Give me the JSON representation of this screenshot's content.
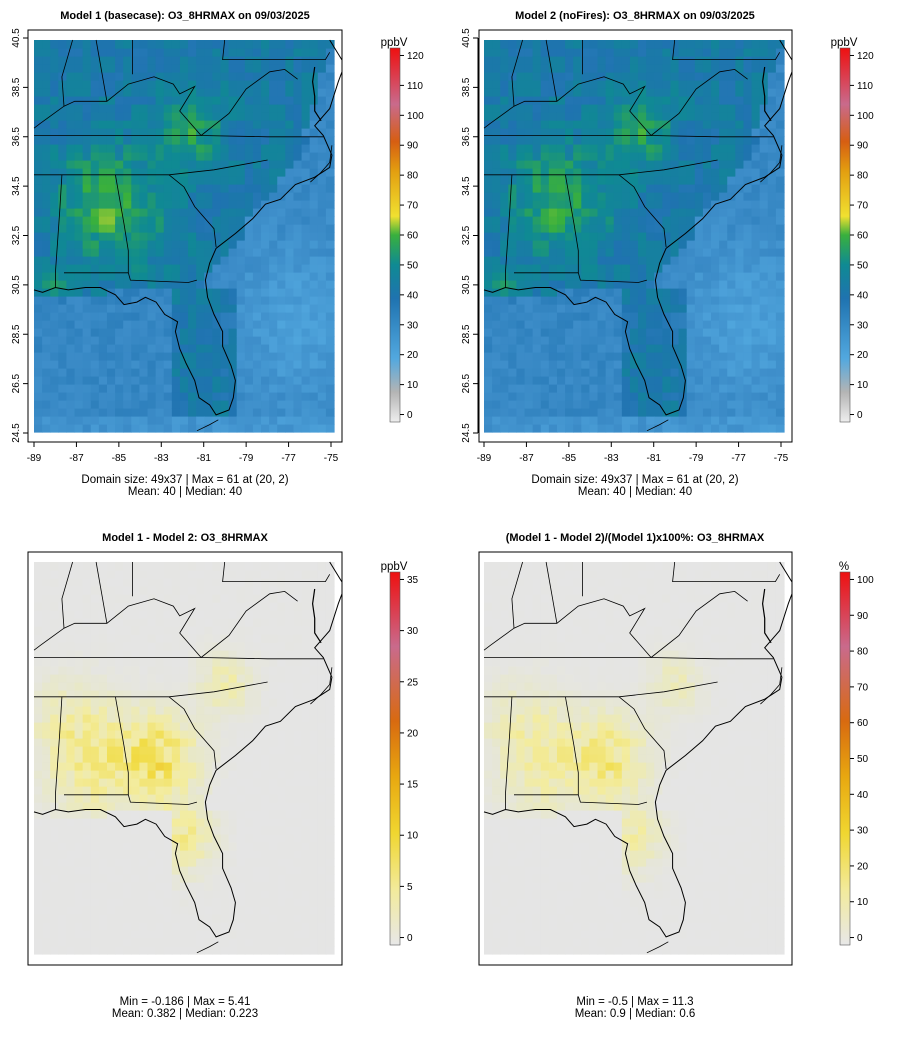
{
  "panels": [
    {
      "id": "m1",
      "type": "abs",
      "title": "Model 1 (basecase): O3_8HRMAX on 09/03/2025",
      "unit": "ppbV",
      "xticks": [
        "-89",
        "-87",
        "-85",
        "-83",
        "-81",
        "-79",
        "-77",
        "-75"
      ],
      "yticks": [
        "24.5",
        "26.5",
        "28.5",
        "30.5",
        "32.5",
        "34.5",
        "36.5",
        "38.5",
        "40.5"
      ],
      "stats1": "Domain size: 49x37 | Max = 61 at (20, 2)",
      "stats2": "Mean: 40 |  Median: 40",
      "colorbar": {
        "min": 0,
        "max": 120,
        "ticks": [
          "0",
          "10",
          "20",
          "30",
          "40",
          "50",
          "60",
          "70",
          "80",
          "90",
          "100",
          "110",
          "120"
        ]
      }
    },
    {
      "id": "m2",
      "type": "abs",
      "title": "Model 2 (noFires): O3_8HRMAX on 09/03/2025",
      "unit": "ppbV",
      "xticks": [
        "-89",
        "-87",
        "-85",
        "-83",
        "-81",
        "-79",
        "-77",
        "-75"
      ],
      "yticks": [
        "24.5",
        "26.5",
        "28.5",
        "30.5",
        "32.5",
        "34.5",
        "36.5",
        "38.5",
        "40.5"
      ],
      "stats1": "Domain size: 49x37 | Max = 61 at (20, 2)",
      "stats2": "Mean: 40 |  Median: 40",
      "colorbar": {
        "min": 0,
        "max": 120,
        "ticks": [
          "0",
          "10",
          "20",
          "30",
          "40",
          "50",
          "60",
          "70",
          "80",
          "90",
          "100",
          "110",
          "120"
        ]
      }
    },
    {
      "id": "diff",
      "type": "diff",
      "title": "Model 1 - Model 2: O3_8HRMAX",
      "unit": "ppbV",
      "stats1": "Min = -0.186 | Max = 5.41",
      "stats2": "Mean: 0.382 |  Median: 0.223",
      "colorbar": {
        "min": 0,
        "max": 35,
        "ticks": [
          "0",
          "5",
          "10",
          "15",
          "20",
          "25",
          "30",
          "35"
        ]
      }
    },
    {
      "id": "pct",
      "type": "pct",
      "title": "(Model 1 - Model 2)/(Model 1)x100%: O3_8HRMAX",
      "unit": "%",
      "stats1": "Min = -0.5 | Max = 11.3",
      "stats2": "Mean: 0.9 |  Median: 0.6",
      "colorbar": {
        "min": 0,
        "max": 100,
        "ticks": [
          "0",
          "10",
          "20",
          "30",
          "40",
          "50",
          "60",
          "70",
          "80",
          "90",
          "100"
        ]
      }
    }
  ],
  "chart_data": [
    {
      "type": "heatmap",
      "title": "Model 1 (basecase): O3_8HRMAX on 09/03/2025",
      "grid": [
        37,
        49
      ],
      "x_range_lon": [
        -89.4,
        -75.4
      ],
      "y_range_lat": [
        24.5,
        40.5
      ],
      "summary": {
        "max": 61,
        "max_at": [
          20,
          2
        ],
        "mean": 40,
        "median": 40
      },
      "color_scale": {
        "label": "ppbV",
        "min": 0,
        "max": 120
      }
    },
    {
      "type": "heatmap",
      "title": "Model 2 (noFires): O3_8HRMAX on 09/03/2025",
      "grid": [
        37,
        49
      ],
      "x_range_lon": [
        -89.4,
        -75.4
      ],
      "y_range_lat": [
        24.5,
        40.5
      ],
      "summary": {
        "max": 61,
        "max_at": [
          20,
          2
        ],
        "mean": 40,
        "median": 40
      },
      "color_scale": {
        "label": "ppbV",
        "min": 0,
        "max": 120
      }
    },
    {
      "type": "heatmap",
      "title": "Model 1 - Model 2: O3_8HRMAX",
      "grid": [
        37,
        49
      ],
      "summary": {
        "min": -0.186,
        "max": 5.41,
        "mean": 0.382,
        "median": 0.223
      },
      "color_scale": {
        "label": "ppbV",
        "min": 0,
        "max": 35
      }
    },
    {
      "type": "heatmap",
      "title": "(Model 1 - Model 2)/(Model 1)x100%: O3_8HRMAX",
      "grid": [
        37,
        49
      ],
      "summary": {
        "min": -0.5,
        "max": 11.3,
        "mean": 0.9,
        "median": 0.6
      },
      "color_scale": {
        "label": "%",
        "min": 0,
        "max": 100
      }
    }
  ]
}
